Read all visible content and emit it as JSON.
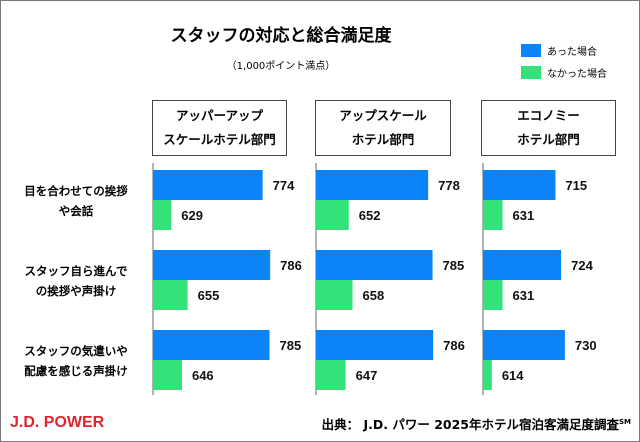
{
  "chart_data": {
    "type": "bar",
    "orientation": "horizontal",
    "title": "スタッフの対応と総合満足度",
    "subtitle": "（1,000ポイント満点）",
    "panels": [
      "アッパーアップ\nスケールホテル部門",
      "アップスケール\nホテル部門",
      "エコノミー\nホテル部門"
    ],
    "categories": [
      "目を合わせての挨拶\nや会話",
      "スタッフ自ら進んで\nの挨拶や声掛け",
      "スタッフの気遣いや\n配慮を感じる声掛け"
    ],
    "series": [
      {
        "name": "あった場合",
        "color": "#0a84f7",
        "values": [
          [
            774,
            786,
            785
          ],
          [
            778,
            785,
            786
          ],
          [
            715,
            724,
            730
          ]
        ]
      },
      {
        "name": "なかった場合",
        "color": "#34e27a",
        "values": [
          [
            629,
            655,
            646
          ],
          [
            652,
            658,
            647
          ],
          [
            631,
            631,
            614
          ]
        ]
      }
    ],
    "xlim": [
      600,
      810
    ],
    "grid": false,
    "legend": "top-right"
  },
  "footer": {
    "logo": "J.D. POWER",
    "source": "出典： J.D. パワー 2025年ホテル宿泊客満足度調査",
    "source_sup": "SM"
  }
}
